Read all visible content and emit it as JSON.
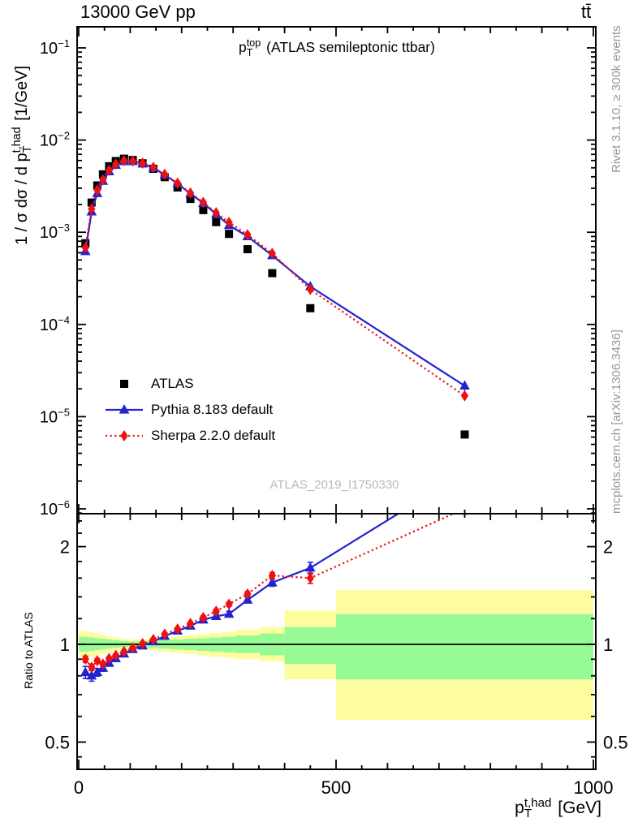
{
  "header": {
    "left": "13000 GeV pp",
    "right": "tt̄"
  },
  "title_parts": {
    "base": "p",
    "sub": "T",
    "sup": "top",
    "rest": " (ATLAS semileptonic ttbar)"
  },
  "watermark": "ATLAS_2019_I1750330",
  "side_notes": {
    "top": "Rivet 3.1.10, ≥ 300k events",
    "bottom": "mcplots.cern.ch [arXiv:1306.3436]"
  },
  "axes": {
    "y_main": {
      "prefix": "1 / σ dσ / d p",
      "sub": "T",
      "sup": "t,had",
      "suffix": " [1/GeV]"
    },
    "y_ratio_label": "Ratio to ATLAS",
    "x_label": {
      "base": "p",
      "sub": "T",
      "sup": "t,had",
      "suffix": " [GeV]"
    }
  },
  "legend": {
    "items": [
      {
        "label": "ATLAS",
        "marker": "square",
        "color": "#000000"
      },
      {
        "label": "Pythia 8.183 default",
        "marker": "triangle",
        "line": "solid",
        "color": "#2222d2"
      },
      {
        "label": "Sherpa 2.2.0 default",
        "marker": "diamond",
        "line": "dotted",
        "color": "#ee1111"
      }
    ]
  },
  "chart_data": {
    "type": "scatter+line with ratio panel",
    "title": "p_T^top (ATLAS semileptonic ttbar)",
    "xlabel": "p_T^{t,had} [GeV]",
    "ylabel": "1 / σ dσ / d p_T^{t,had} [1/GeV]",
    "ylabel_ratio": "Ratio to ATLAS",
    "xlim": [
      0,
      1000
    ],
    "ylim_main": [
      8.8e-07,
      0.17
    ],
    "ylim_ratio": [
      0.412,
      2.53
    ],
    "x_ticks": [
      0,
      500,
      1000
    ],
    "x_minor_step": 50,
    "y_decades": [
      -1,
      -2,
      -3,
      -4,
      -5,
      -6
    ],
    "ratio_ticks": [
      0.5,
      1,
      2
    ],
    "ratio_minor_ticks": [
      0.45,
      0.6,
      0.7,
      0.8,
      0.9,
      1.2,
      1.4,
      1.6,
      1.8,
      2.2,
      2.4
    ],
    "bin_edges": [
      0,
      19,
      31,
      42,
      53,
      65,
      80,
      96,
      114,
      134,
      156,
      178,
      204,
      230,
      254,
      280,
      304,
      352,
      400,
      500,
      1000
    ],
    "x_centers": [
      13,
      25,
      36,
      47,
      59,
      72,
      88,
      105,
      124,
      145,
      167,
      192,
      217,
      242,
      267,
      292,
      328,
      376,
      450,
      750
    ],
    "series": [
      {
        "name": "ATLAS",
        "marker": "square",
        "color": "#000000",
        "values": [
          0.00076,
          0.0021,
          0.00322,
          0.00425,
          0.0052,
          0.00592,
          0.00628,
          0.00608,
          0.0056,
          0.00488,
          0.00396,
          0.00306,
          0.0023,
          0.00174,
          0.00129,
          0.00096,
          0.000655,
          0.00036,
          0.00015,
          6.4e-06
        ]
      },
      {
        "name": "Pythia 8.183 default",
        "marker": "triangle",
        "line": "solid",
        "color": "#2222d2",
        "values": [
          0.00062,
          0.00167,
          0.00264,
          0.00359,
          0.00455,
          0.00536,
          0.00587,
          0.00587,
          0.00554,
          0.00498,
          0.0042,
          0.00337,
          0.00262,
          0.00207,
          0.00157,
          0.00119,
          0.0009,
          0.00056,
          0.000258,
          2.16e-05
        ],
        "ratio": [
          0.82,
          0.8,
          0.82,
          0.845,
          0.875,
          0.905,
          0.935,
          0.965,
          0.99,
          1.02,
          1.06,
          1.1,
          1.14,
          1.19,
          1.22,
          1.24,
          1.37,
          1.55,
          1.72,
          3.38
        ],
        "ratio_err": [
          0.035,
          0.03,
          0.022,
          0.018,
          0.014,
          0.012,
          0.01,
          0.01,
          0.01,
          0.011,
          0.012,
          0.014,
          0.016,
          0.018,
          0.021,
          0.024,
          0.028,
          0.04,
          0.07,
          0.12
        ]
      },
      {
        "name": "Sherpa 2.2.0 default",
        "marker": "diamond",
        "line": "dotted",
        "color": "#ee1111",
        "values": [
          0.00068,
          0.00179,
          0.00287,
          0.0037,
          0.00471,
          0.00548,
          0.00597,
          0.00593,
          0.00563,
          0.00505,
          0.00426,
          0.00341,
          0.00267,
          0.00211,
          0.00163,
          0.00128,
          0.00094,
          0.00059,
          0.00024,
          1.68e-05
        ],
        "ratio": [
          0.9,
          0.85,
          0.89,
          0.87,
          0.905,
          0.925,
          0.95,
          0.975,
          1.005,
          1.035,
          1.075,
          1.115,
          1.16,
          1.21,
          1.265,
          1.33,
          1.43,
          1.63,
          1.6,
          2.62
        ],
        "ratio_err": [
          0.02,
          0.018,
          0.014,
          0.012,
          0.01,
          0.009,
          0.008,
          0.008,
          0.008,
          0.009,
          0.01,
          0.011,
          0.013,
          0.015,
          0.017,
          0.02,
          0.024,
          0.034,
          0.06,
          0.1
        ]
      }
    ],
    "bands": {
      "green_color": "#97fb95",
      "yellow_color": "#fdfda0",
      "per_bin": [
        [
          0.95,
          1.055,
          0.9,
          1.1
        ],
        [
          0.955,
          1.05,
          0.915,
          1.09
        ],
        [
          0.96,
          1.045,
          0.925,
          1.08
        ],
        [
          0.965,
          1.04,
          0.935,
          1.07
        ],
        [
          0.97,
          1.035,
          0.945,
          1.06
        ],
        [
          0.975,
          1.03,
          0.955,
          1.05
        ],
        [
          0.98,
          1.025,
          0.962,
          1.04
        ],
        [
          0.98,
          1.02,
          0.965,
          1.035
        ],
        [
          0.978,
          1.022,
          0.962,
          1.038
        ],
        [
          0.975,
          1.025,
          0.958,
          1.042
        ],
        [
          0.97,
          1.03,
          0.95,
          1.05
        ],
        [
          0.965,
          1.035,
          0.942,
          1.058
        ],
        [
          0.96,
          1.04,
          0.934,
          1.066
        ],
        [
          0.955,
          1.045,
          0.925,
          1.075
        ],
        [
          0.95,
          1.05,
          0.916,
          1.084
        ],
        [
          0.945,
          1.055,
          0.908,
          1.092
        ],
        [
          0.94,
          1.065,
          0.9,
          1.11
        ],
        [
          0.925,
          1.08,
          0.885,
          1.13
        ],
        [
          0.87,
          1.13,
          0.78,
          1.27
        ],
        [
          0.78,
          1.24,
          0.585,
          1.47
        ]
      ]
    },
    "legend_position": "inside-left",
    "grid": false
  }
}
